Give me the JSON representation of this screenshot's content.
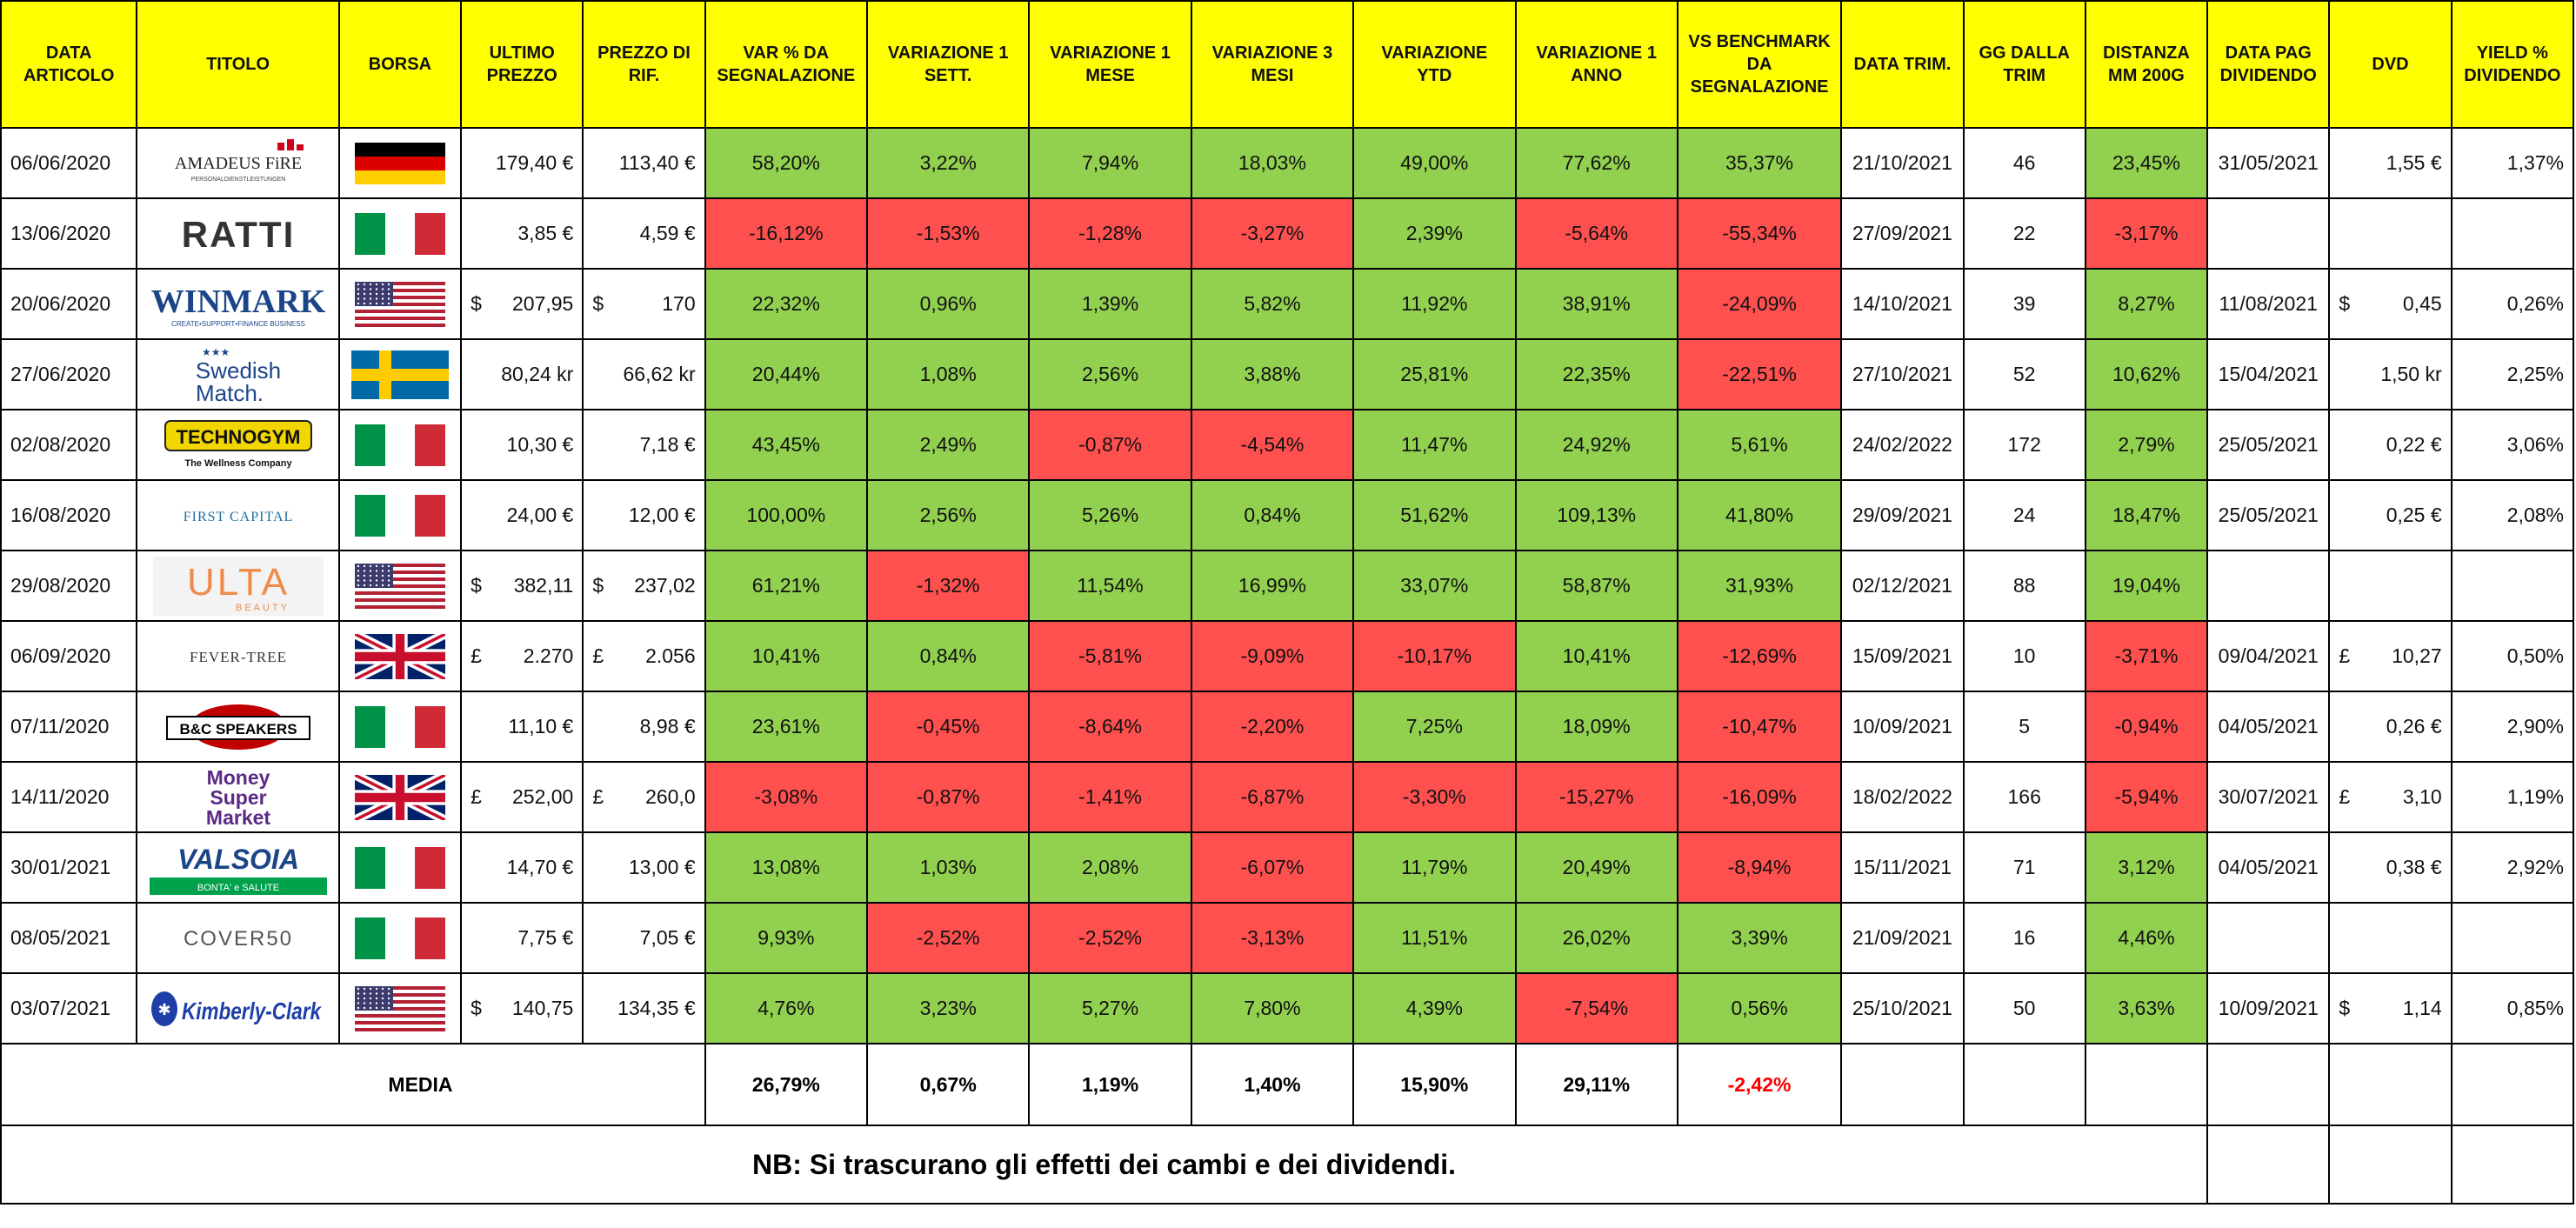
{
  "colors": {
    "header": "#ffff00",
    "positive": "#92d050",
    "negative": "#ff5050",
    "media_negative_text": "#ff0000"
  },
  "headers": {
    "date": "DATA ARTICOLO",
    "title": "TITOLO",
    "exchange": "BORSA",
    "last_price": "ULTIMO PREZZO",
    "ref_price": "PREZZO DI RIF.",
    "var_since": "VAR % DA SEGNALAZIONE",
    "w1": "VARIAZIONE 1 SETT.",
    "m1": "VARIAZIONE 1 MESE",
    "m3": "VARIAZIONE 3 MESI",
    "ytd": "VARIAZIONE YTD",
    "y1": "VARIAZIONE 1 ANNO",
    "bench": "VS BENCHMARK DA SEGNALAZIONE",
    "quarter_date": "DATA TRIM.",
    "days_quarter": "GG DALLA TRIM",
    "mm200": "DISTANZA MM 200G",
    "div_date": "DATA PAG DIVIDENDO",
    "dvd": "DVD",
    "yield": "YIELD % DIVIDENDO"
  },
  "rows": [
    {
      "date": "06/06/2020",
      "logo": "amadeus-fire-logo",
      "logo_text": "AMADEUS FiRE",
      "logo_sub": "PERSONALDIENSTLEISTUNGEN",
      "flag": "germany-flag",
      "last": {
        "c": "",
        "v": "179,40 €"
      },
      "ref": {
        "c": "",
        "v": "113,40 €"
      },
      "var": {
        "v": "58,20%",
        "s": "pos"
      },
      "w1": {
        "v": "3,22%",
        "s": "pos"
      },
      "m1": {
        "v": "7,94%",
        "s": "pos"
      },
      "m3": {
        "v": "18,03%",
        "s": "pos"
      },
      "ytd": {
        "v": "49,00%",
        "s": "pos"
      },
      "y1": {
        "v": "77,62%",
        "s": "pos"
      },
      "bench": {
        "v": "35,37%",
        "s": "pos"
      },
      "qdate": "21/10/2021",
      "days": "46",
      "mm200": {
        "v": "23,45%",
        "s": "pos"
      },
      "divdate": "31/05/2021",
      "dvd": {
        "c": "",
        "v": "1,55 €"
      },
      "yield": "1,37%"
    },
    {
      "date": "13/06/2020",
      "logo": "ratti-logo",
      "logo_text": "RATTI",
      "logo_sub": "",
      "flag": "italy-flag",
      "last": {
        "c": "",
        "v": "3,85 €"
      },
      "ref": {
        "c": "",
        "v": "4,59 €"
      },
      "var": {
        "v": "-16,12%",
        "s": "neg"
      },
      "w1": {
        "v": "-1,53%",
        "s": "neg"
      },
      "m1": {
        "v": "-1,28%",
        "s": "neg"
      },
      "m3": {
        "v": "-3,27%",
        "s": "neg"
      },
      "ytd": {
        "v": "2,39%",
        "s": "pos"
      },
      "y1": {
        "v": "-5,64%",
        "s": "neg"
      },
      "bench": {
        "v": "-55,34%",
        "s": "neg"
      },
      "qdate": "27/09/2021",
      "days": "22",
      "mm200": {
        "v": "-3,17%",
        "s": "neg"
      },
      "divdate": "",
      "dvd": {
        "c": "",
        "v": ""
      },
      "yield": ""
    },
    {
      "date": "20/06/2020",
      "logo": "winmark-logo",
      "logo_text": "WINMARK",
      "logo_sub": "CREATE•SUPPORT•FINANCE BUSINESS",
      "flag": "usa-flag",
      "last": {
        "c": "$",
        "v": "207,95"
      },
      "ref": {
        "c": "$",
        "v": "170"
      },
      "var": {
        "v": "22,32%",
        "s": "pos"
      },
      "w1": {
        "v": "0,96%",
        "s": "pos"
      },
      "m1": {
        "v": "1,39%",
        "s": "pos"
      },
      "m3": {
        "v": "5,82%",
        "s": "pos"
      },
      "ytd": {
        "v": "11,92%",
        "s": "pos"
      },
      "y1": {
        "v": "38,91%",
        "s": "pos"
      },
      "bench": {
        "v": "-24,09%",
        "s": "neg"
      },
      "qdate": "14/10/2021",
      "days": "39",
      "mm200": {
        "v": "8,27%",
        "s": "pos"
      },
      "divdate": "11/08/2021",
      "dvd": {
        "c": "$",
        "v": "0,45"
      },
      "yield": "0,26%"
    },
    {
      "date": "27/06/2020",
      "logo": "swedish-match-logo",
      "logo_text": "Swedish",
      "logo_sub": "Match.",
      "flag": "sweden-flag",
      "last": {
        "c": "",
        "v": "80,24 kr"
      },
      "ref": {
        "c": "",
        "v": "66,62 kr"
      },
      "var": {
        "v": "20,44%",
        "s": "pos"
      },
      "w1": {
        "v": "1,08%",
        "s": "pos"
      },
      "m1": {
        "v": "2,56%",
        "s": "pos"
      },
      "m3": {
        "v": "3,88%",
        "s": "pos"
      },
      "ytd": {
        "v": "25,81%",
        "s": "pos"
      },
      "y1": {
        "v": "22,35%",
        "s": "pos"
      },
      "bench": {
        "v": "-22,51%",
        "s": "neg"
      },
      "qdate": "27/10/2021",
      "days": "52",
      "mm200": {
        "v": "10,62%",
        "s": "pos"
      },
      "divdate": "15/04/2021",
      "dvd": {
        "c": "",
        "v": "1,50 kr"
      },
      "yield": "2,25%"
    },
    {
      "date": "02/08/2020",
      "logo": "technogym-logo",
      "logo_text": "TECHNOGYM",
      "logo_sub": "The Wellness Company",
      "flag": "italy-flag",
      "last": {
        "c": "",
        "v": "10,30 €"
      },
      "ref": {
        "c": "",
        "v": "7,18 €"
      },
      "var": {
        "v": "43,45%",
        "s": "pos"
      },
      "w1": {
        "v": "2,49%",
        "s": "pos"
      },
      "m1": {
        "v": "-0,87%",
        "s": "neg"
      },
      "m3": {
        "v": "-4,54%",
        "s": "neg"
      },
      "ytd": {
        "v": "11,47%",
        "s": "pos"
      },
      "y1": {
        "v": "24,92%",
        "s": "pos"
      },
      "bench": {
        "v": "5,61%",
        "s": "pos"
      },
      "qdate": "24/02/2022",
      "days": "172",
      "mm200": {
        "v": "2,79%",
        "s": "pos"
      },
      "divdate": "25/05/2021",
      "dvd": {
        "c": "",
        "v": "0,22 €"
      },
      "yield": "3,06%"
    },
    {
      "date": "16/08/2020",
      "logo": "first-capital-logo",
      "logo_text": "FIRST CAPITAL",
      "logo_sub": "",
      "flag": "italy-flag",
      "last": {
        "c": "",
        "v": "24,00 €"
      },
      "ref": {
        "c": "",
        "v": "12,00 €"
      },
      "var": {
        "v": "100,00%",
        "s": "pos"
      },
      "w1": {
        "v": "2,56%",
        "s": "pos"
      },
      "m1": {
        "v": "5,26%",
        "s": "pos"
      },
      "m3": {
        "v": "0,84%",
        "s": "pos"
      },
      "ytd": {
        "v": "51,62%",
        "s": "pos"
      },
      "y1": {
        "v": "109,13%",
        "s": "pos"
      },
      "bench": {
        "v": "41,80%",
        "s": "pos"
      },
      "qdate": "29/09/2021",
      "days": "24",
      "mm200": {
        "v": "18,47%",
        "s": "pos"
      },
      "divdate": "25/05/2021",
      "dvd": {
        "c": "",
        "v": "0,25 €"
      },
      "yield": "2,08%"
    },
    {
      "date": "29/08/2020",
      "logo": "ulta-beauty-logo",
      "logo_text": "ULTA",
      "logo_sub": "BEAUTY",
      "flag": "usa-flag",
      "last": {
        "c": "$",
        "v": "382,11"
      },
      "ref": {
        "c": "$",
        "v": "237,02"
      },
      "var": {
        "v": "61,21%",
        "s": "pos"
      },
      "w1": {
        "v": "-1,32%",
        "s": "neg"
      },
      "m1": {
        "v": "11,54%",
        "s": "pos"
      },
      "m3": {
        "v": "16,99%",
        "s": "pos"
      },
      "ytd": {
        "v": "33,07%",
        "s": "pos"
      },
      "y1": {
        "v": "58,87%",
        "s": "pos"
      },
      "bench": {
        "v": "31,93%",
        "s": "pos"
      },
      "qdate": "02/12/2021",
      "days": "88",
      "mm200": {
        "v": "19,04%",
        "s": "pos"
      },
      "divdate": "",
      "dvd": {
        "c": "",
        "v": ""
      },
      "yield": ""
    },
    {
      "date": "06/09/2020",
      "logo": "fever-tree-logo",
      "logo_text": "FEVER-TREE",
      "logo_sub": "",
      "flag": "uk-flag",
      "last": {
        "c": "£",
        "v": "2.270"
      },
      "ref": {
        "c": "£",
        "v": "2.056"
      },
      "var": {
        "v": "10,41%",
        "s": "pos"
      },
      "w1": {
        "v": "0,84%",
        "s": "pos"
      },
      "m1": {
        "v": "-5,81%",
        "s": "neg"
      },
      "m3": {
        "v": "-9,09%",
        "s": "neg"
      },
      "ytd": {
        "v": "-10,17%",
        "s": "neg"
      },
      "y1": {
        "v": "10,41%",
        "s": "pos"
      },
      "bench": {
        "v": "-12,69%",
        "s": "neg"
      },
      "qdate": "15/09/2021",
      "days": "10",
      "mm200": {
        "v": "-3,71%",
        "s": "neg"
      },
      "divdate": "09/04/2021",
      "dvd": {
        "c": "£",
        "v": "10,27"
      },
      "yield": "0,50%"
    },
    {
      "date": "07/11/2020",
      "logo": "bc-speakers-logo",
      "logo_text": "B&C SPEAKERS",
      "logo_sub": "",
      "flag": "italy-flag",
      "last": {
        "c": "",
        "v": "11,10 €"
      },
      "ref": {
        "c": "",
        "v": "8,98 €"
      },
      "var": {
        "v": "23,61%",
        "s": "pos"
      },
      "w1": {
        "v": "-0,45%",
        "s": "neg"
      },
      "m1": {
        "v": "-8,64%",
        "s": "neg"
      },
      "m3": {
        "v": "-2,20%",
        "s": "neg"
      },
      "ytd": {
        "v": "7,25%",
        "s": "pos"
      },
      "y1": {
        "v": "18,09%",
        "s": "pos"
      },
      "bench": {
        "v": "-10,47%",
        "s": "neg"
      },
      "qdate": "10/09/2021",
      "days": "5",
      "mm200": {
        "v": "-0,94%",
        "s": "neg"
      },
      "divdate": "04/05/2021",
      "dvd": {
        "c": "",
        "v": "0,26 €"
      },
      "yield": "2,90%"
    },
    {
      "date": "14/11/2020",
      "logo": "money-supermarket-logo",
      "logo_text": "Money Super Market",
      "logo_sub": "",
      "flag": "uk-flag",
      "last": {
        "c": "£",
        "v": "252,00"
      },
      "ref": {
        "c": "£",
        "v": "260,0"
      },
      "var": {
        "v": "-3,08%",
        "s": "neg"
      },
      "w1": {
        "v": "-0,87%",
        "s": "neg"
      },
      "m1": {
        "v": "-1,41%",
        "s": "neg"
      },
      "m3": {
        "v": "-6,87%",
        "s": "neg"
      },
      "ytd": {
        "v": "-3,30%",
        "s": "neg"
      },
      "y1": {
        "v": "-15,27%",
        "s": "neg"
      },
      "bench": {
        "v": "-16,09%",
        "s": "neg"
      },
      "qdate": "18/02/2022",
      "days": "166",
      "mm200": {
        "v": "-5,94%",
        "s": "neg"
      },
      "divdate": "30/07/2021",
      "dvd": {
        "c": "£",
        "v": "3,10"
      },
      "yield": "1,19%"
    },
    {
      "date": "30/01/2021",
      "logo": "valsoia-logo",
      "logo_text": "VALSOIA",
      "logo_sub": "BONTA' e SALUTE",
      "flag": "italy-flag",
      "last": {
        "c": "",
        "v": "14,70 €"
      },
      "ref": {
        "c": "",
        "v": "13,00 €"
      },
      "var": {
        "v": "13,08%",
        "s": "pos"
      },
      "w1": {
        "v": "1,03%",
        "s": "pos"
      },
      "m1": {
        "v": "2,08%",
        "s": "pos"
      },
      "m3": {
        "v": "-6,07%",
        "s": "neg"
      },
      "ytd": {
        "v": "11,79%",
        "s": "pos"
      },
      "y1": {
        "v": "20,49%",
        "s": "pos"
      },
      "bench": {
        "v": "-8,94%",
        "s": "neg"
      },
      "qdate": "15/11/2021",
      "days": "71",
      "mm200": {
        "v": "3,12%",
        "s": "pos"
      },
      "divdate": "04/05/2021",
      "dvd": {
        "c": "",
        "v": "0,38 €"
      },
      "yield": "2,92%"
    },
    {
      "date": "08/05/2021",
      "logo": "cover50-logo",
      "logo_text": "COVER50",
      "logo_sub": "",
      "flag": "italy-flag",
      "last": {
        "c": "",
        "v": "7,75 €"
      },
      "ref": {
        "c": "",
        "v": "7,05 €"
      },
      "var": {
        "v": "9,93%",
        "s": "pos"
      },
      "w1": {
        "v": "-2,52%",
        "s": "neg"
      },
      "m1": {
        "v": "-2,52%",
        "s": "neg"
      },
      "m3": {
        "v": "-3,13%",
        "s": "neg"
      },
      "ytd": {
        "v": "11,51%",
        "s": "pos"
      },
      "y1": {
        "v": "26,02%",
        "s": "pos"
      },
      "bench": {
        "v": "3,39%",
        "s": "pos"
      },
      "qdate": "21/09/2021",
      "days": "16",
      "mm200": {
        "v": "4,46%",
        "s": "pos"
      },
      "divdate": "",
      "dvd": {
        "c": "",
        "v": ""
      },
      "yield": ""
    },
    {
      "date": "03/07/2021",
      "logo": "kimberly-clark-logo",
      "logo_text": "Kimberly-Clark",
      "logo_sub": "",
      "flag": "usa-flag",
      "last": {
        "c": "$",
        "v": "140,75"
      },
      "ref": {
        "c": "",
        "v": "134,35 €"
      },
      "var": {
        "v": "4,76%",
        "s": "pos"
      },
      "w1": {
        "v": "3,23%",
        "s": "pos"
      },
      "m1": {
        "v": "5,27%",
        "s": "pos"
      },
      "m3": {
        "v": "7,80%",
        "s": "pos"
      },
      "ytd": {
        "v": "4,39%",
        "s": "pos"
      },
      "y1": {
        "v": "-7,54%",
        "s": "neg"
      },
      "bench": {
        "v": "0,56%",
        "s": "pos"
      },
      "qdate": "25/10/2021",
      "days": "50",
      "mm200": {
        "v": "3,63%",
        "s": "pos"
      },
      "divdate": "10/09/2021",
      "dvd": {
        "c": "$",
        "v": "1,14"
      },
      "yield": "0,85%"
    }
  ],
  "media": {
    "label": "MEDIA",
    "var": "26,79%",
    "w1": "0,67%",
    "m1": "1,19%",
    "m3": "1,40%",
    "ytd": "15,90%",
    "y1": "29,11%",
    "bench": "-2,42%"
  },
  "note": "NB: Si trascurano gli effetti dei cambi e dei dividendi."
}
